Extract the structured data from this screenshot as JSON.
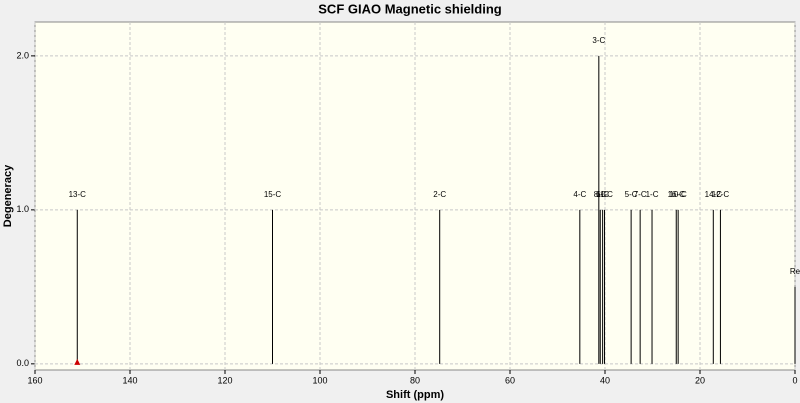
{
  "chart_data": {
    "type": "stick",
    "title": "SCF GIAO Magnetic shielding",
    "xlabel": "Shift (ppm)",
    "ylabel": "Degeneracy",
    "labels": [
      "13-C",
      "15-C",
      "2-C",
      "4-C",
      "3-C",
      "8-C",
      "6-C",
      "11-C",
      "5-C",
      "7-C",
      "1-C",
      "16-C",
      "10-C",
      "14-C",
      "12-C",
      "Re"
    ],
    "x": [
      151.1,
      110.0,
      74.8,
      45.3,
      41.3,
      41.0,
      40.5,
      40.1,
      34.5,
      32.6,
      30.1,
      25.0,
      24.6,
      17.2,
      15.7,
      0.0
    ],
    "values": [
      1,
      1,
      1,
      1,
      2,
      1,
      1,
      1,
      1,
      1,
      1,
      1,
      1,
      1,
      1,
      0.5
    ],
    "color": "#000000",
    "xlim": [
      160,
      0
    ],
    "ylim": [
      -0.04,
      2.22
    ],
    "xticks": [
      160,
      140,
      120,
      100,
      80,
      60,
      40,
      20,
      0
    ],
    "yticks": [
      {
        "value": 0,
        "label": "0.0"
      },
      {
        "value": 1,
        "label": "1.0"
      },
      {
        "value": 2,
        "label": "2.0"
      }
    ],
    "grid": true
  }
}
